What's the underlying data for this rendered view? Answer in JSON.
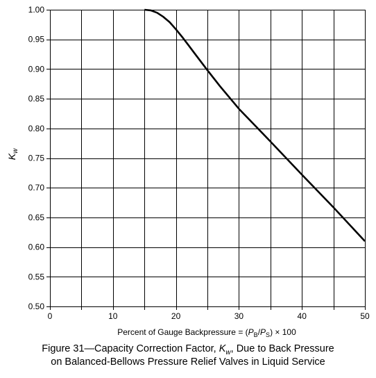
{
  "chart_data": {
    "type": "line",
    "xlabel": {
      "prefix": "Percent of Gauge Backpressure = (",
      "p_b": "P",
      "p_b_sub": "B",
      "slash": "/",
      "p_s": "P",
      "p_s_sub": "S",
      "suffix": ") × 100"
    },
    "ylabel": {
      "main": "K",
      "sub": "w"
    },
    "xlim": [
      0,
      50
    ],
    "ylim": [
      0.5,
      1.0
    ],
    "xticks": [
      "0",
      "10",
      "20",
      "30",
      "40",
      "50"
    ],
    "yticks": [
      "0.50",
      "0.55",
      "0.60",
      "0.65",
      "0.70",
      "0.75",
      "0.80",
      "0.85",
      "0.90",
      "0.95",
      "1.00"
    ],
    "x_grid_step": 5,
    "y_grid_step": 0.05,
    "grid": true,
    "series": [
      {
        "x": [
          0,
          15,
          16,
          17,
          18,
          19,
          20,
          21,
          22,
          23,
          25,
          27,
          30,
          35,
          40,
          45,
          50
        ],
        "y": [
          1.0,
          1.0,
          0.999,
          0.995,
          0.988,
          0.979,
          0.967,
          0.954,
          0.94,
          0.926,
          0.898,
          0.871,
          0.833,
          0.778,
          0.722,
          0.667,
          0.61
        ],
        "color": "#000000"
      }
    ]
  },
  "caption": {
    "line1_prefix": "Figure  31—Capacity Correction Factor, ",
    "line1_k": "K",
    "line1_sub": "w",
    "line1_suffix": ", Due to Back Pressure",
    "line2": "on Balanced-Bellows Pressure Relief Valves in Liquid Service"
  }
}
